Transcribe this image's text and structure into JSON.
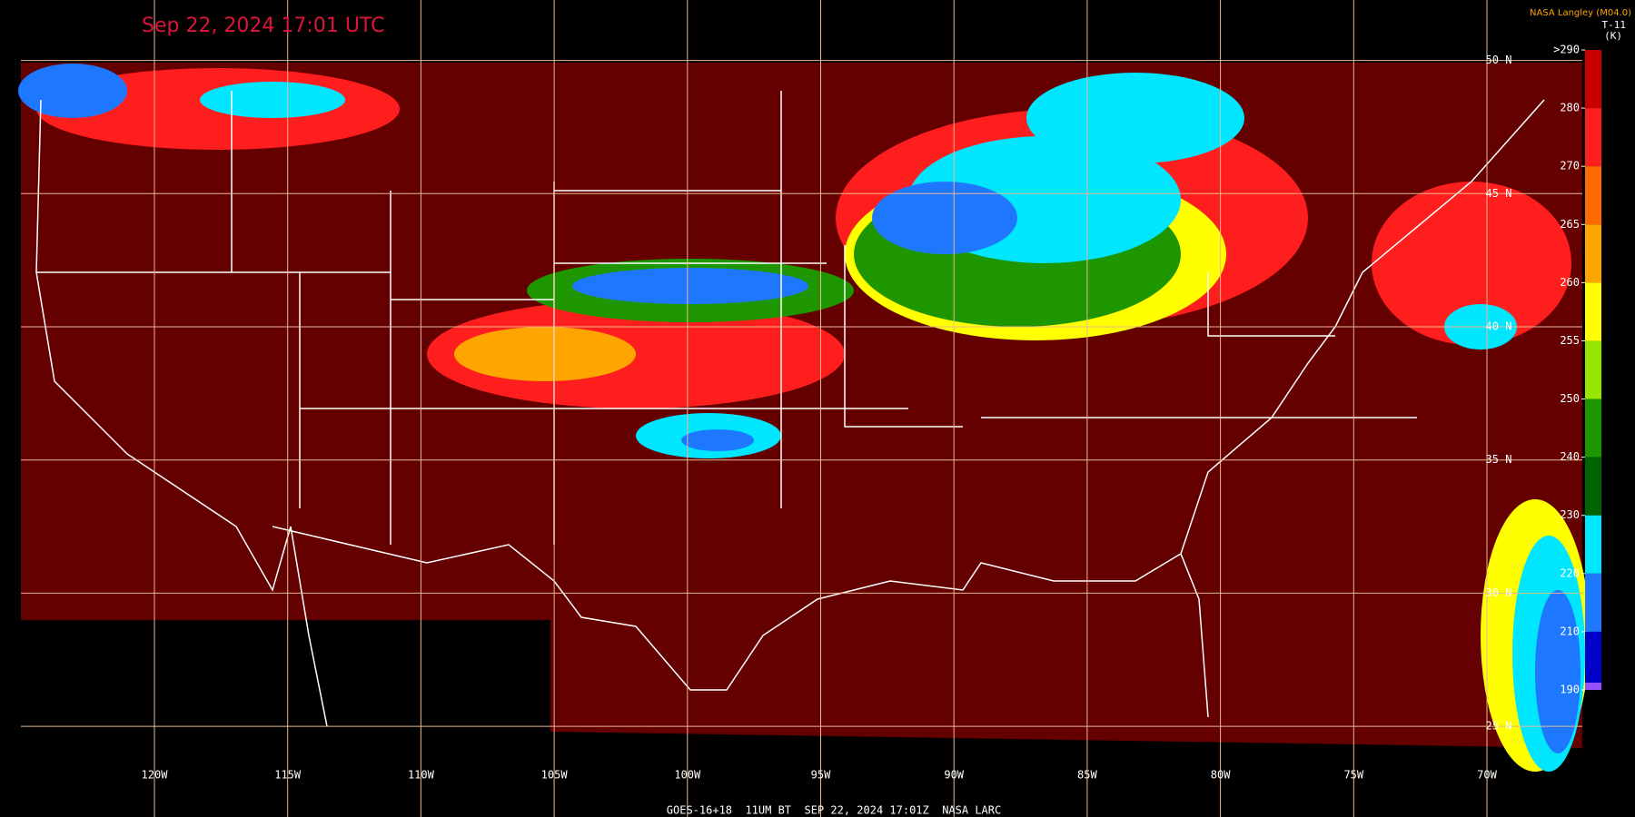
{
  "title": "Sep 22, 2024 17:01 UTC",
  "credit": "NASA Langley (M04.0)",
  "product": "T-11",
  "unit": "(K)",
  "footer": "GOES-16+18  11UM BT  SEP 22, 2024 17:01Z  NASA LARC",
  "colorbar": {
    "ticks": [
      {
        "value": 290,
        "label": ">290"
      },
      280,
      270,
      265,
      260,
      255,
      250,
      240,
      230,
      220,
      210,
      190
    ],
    "colors": [
      "#c80000",
      "#ff1e1e",
      "#ff6a00",
      "#ffa500",
      "#ffff00",
      "#96e600",
      "#1e9600",
      "#006400",
      "#00e6ff",
      "#1e78ff",
      "#0000c8"
    ],
    "bottom_color": "#9650ff"
  },
  "longitudes": [
    {
      "value": -120,
      "label": "120W"
    },
    {
      "value": -115,
      "label": "115W"
    },
    {
      "value": -110,
      "label": "110W"
    },
    {
      "value": -105,
      "label": "105W"
    },
    {
      "value": -100,
      "label": "100W"
    },
    {
      "value": -95,
      "label": "95W"
    },
    {
      "value": -90,
      "label": "90W"
    },
    {
      "value": -85,
      "label": "85W"
    },
    {
      "value": -80,
      "label": "80W"
    },
    {
      "value": -75,
      "label": "75W"
    },
    {
      "value": -70,
      "label": "70W"
    }
  ],
  "latitudes": [
    {
      "value": 50,
      "label": "50 N"
    },
    {
      "value": 45,
      "label": "45 N"
    },
    {
      "value": 40,
      "label": "40 N"
    },
    {
      "value": 35,
      "label": "35 N"
    },
    {
      "value": 30,
      "label": "30 N"
    },
    {
      "value": 25,
      "label": "25 N"
    }
  ]
}
